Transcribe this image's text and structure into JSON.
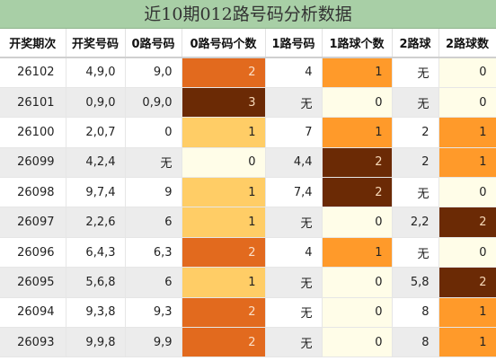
{
  "title": "近10期012路号码分析数据",
  "columns": [
    "开奖期次",
    "开奖号码",
    "0路号码",
    "0路号码个数",
    "1路号码",
    "1路球个数",
    "2路球",
    "2路球数"
  ],
  "colors": {
    "title_bg": "#a8cfa6",
    "count_0": "#fffde8",
    "count_1_light": "#ffcd66",
    "count_1_orange": "#ff9a2a",
    "count_2_orange": "#e26a1e",
    "count_2_dark": "#6b2a05",
    "count_3_dark": "#6b2a05"
  },
  "rows": [
    {
      "issue": "26102",
      "numbers": "4,9,0",
      "r0": "9,0",
      "r0_count": "2",
      "r1": "4",
      "r1_count": "1",
      "r2": "无",
      "r2_count": "0"
    },
    {
      "issue": "26101",
      "numbers": "0,9,0",
      "r0": "0,9,0",
      "r0_count": "3",
      "r1": "无",
      "r1_count": "0",
      "r2": "无",
      "r2_count": "0"
    },
    {
      "issue": "26100",
      "numbers": "2,0,7",
      "r0": "0",
      "r0_count": "1",
      "r1": "7",
      "r1_count": "1",
      "r2": "2",
      "r2_count": "1"
    },
    {
      "issue": "26099",
      "numbers": "4,2,4",
      "r0": "无",
      "r0_count": "0",
      "r1": "4,4",
      "r1_count": "2",
      "r2": "2",
      "r2_count": "1"
    },
    {
      "issue": "26098",
      "numbers": "9,7,4",
      "r0": "9",
      "r0_count": "1",
      "r1": "7,4",
      "r1_count": "2",
      "r2": "无",
      "r2_count": "0"
    },
    {
      "issue": "26097",
      "numbers": "2,2,6",
      "r0": "6",
      "r0_count": "1",
      "r1": "无",
      "r1_count": "0",
      "r2": "2,2",
      "r2_count": "2"
    },
    {
      "issue": "26096",
      "numbers": "6,4,3",
      "r0": "6,3",
      "r0_count": "2",
      "r1": "4",
      "r1_count": "1",
      "r2": "无",
      "r2_count": "0"
    },
    {
      "issue": "26095",
      "numbers": "5,6,8",
      "r0": "6",
      "r0_count": "1",
      "r1": "无",
      "r1_count": "0",
      "r2": "5,8",
      "r2_count": "2"
    },
    {
      "issue": "26094",
      "numbers": "9,3,8",
      "r0": "9,3",
      "r0_count": "2",
      "r1": "无",
      "r1_count": "0",
      "r2": "8",
      "r2_count": "1"
    },
    {
      "issue": "26093",
      "numbers": "9,9,8",
      "r0": "9,9",
      "r0_count": "2",
      "r1": "无",
      "r1_count": "0",
      "r2": "8",
      "r2_count": "1"
    }
  ]
}
